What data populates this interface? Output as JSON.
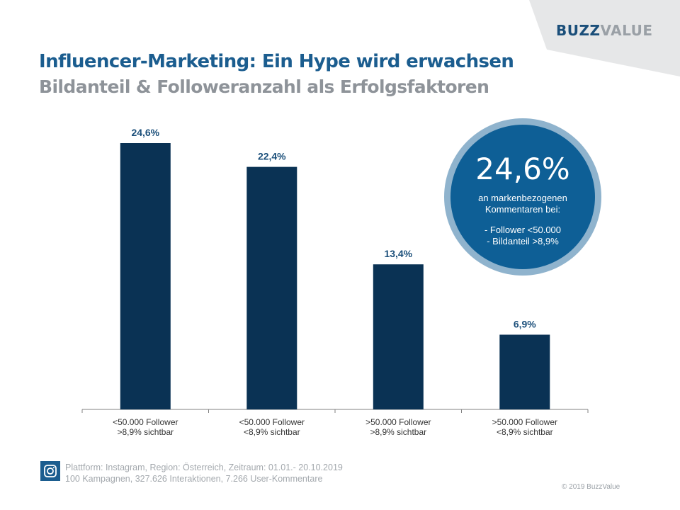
{
  "brand": {
    "part1": "BUZZ",
    "part2": "VALUE"
  },
  "header": {
    "title": "Influencer-Marketing: Ein Hype wird erwachsen",
    "subtitle": "Bildanteil & Followeranzahl als Erfolgsfaktoren"
  },
  "chart_data": {
    "type": "bar",
    "categories": [
      [
        "<50.000 Follower",
        ">8,9% sichtbar"
      ],
      [
        "<50.000 Follower",
        "<8,9% sichtbar"
      ],
      [
        ">50.000 Follower",
        ">8,9% sichtbar"
      ],
      [
        ">50.000 Follower",
        "<8,9% sichtbar"
      ]
    ],
    "values": [
      24.6,
      22.4,
      13.4,
      6.9
    ],
    "value_labels": [
      "24,6%",
      "22,4%",
      "13,4%",
      "6,9%"
    ],
    "bar_color": "#0a3254",
    "label_color": "#1b4f7a",
    "grid": false,
    "legend": "none"
  },
  "callout": {
    "big": "24,6%",
    "line1": "an markenbezogenen",
    "line2": "Kommentaren bei:",
    "line3": "- Follower  <50.000",
    "line4": "- Bildanteil  >8,9%"
  },
  "footer": {
    "icon": "instagram-icon",
    "line1": "Plattform: Instagram, Region:  Österreich, Zeitraum: 01.01.- 20.10.2019",
    "line2": "100 Kampagnen,  327.626 Interaktionen, 7.266 User-Kommentare"
  },
  "copyright": "© 2019 BuzzValue",
  "colors": {
    "title": "#1b5d8f",
    "subtitle": "#8e9399",
    "callout_fill": "#0e5f96",
    "callout_ring": "#8fb3cd",
    "corner_gray": "#e6e7e8"
  }
}
